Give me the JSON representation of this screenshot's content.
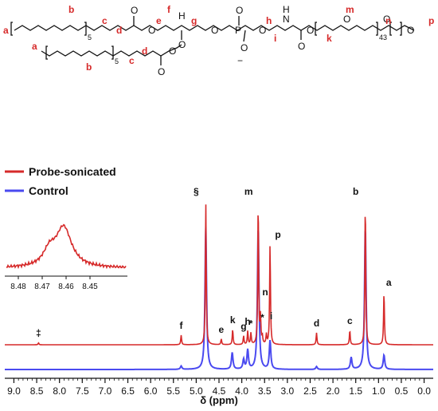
{
  "structure": {
    "atom_labels": [
      "a",
      "b",
      "c",
      "d",
      "e",
      "f",
      "g",
      "h",
      "i",
      "k",
      "m",
      "n",
      "p",
      "a",
      "b",
      "c",
      "d"
    ],
    "atoms": [
      "O",
      "O",
      "O",
      "P",
      "O",
      "O",
      "O",
      "N",
      "H",
      "O",
      "O",
      "O",
      "O",
      "O",
      "O",
      "O",
      "O",
      "H"
    ],
    "repeat_subscripts": [
      "5",
      "43",
      "5"
    ],
    "charge": "−"
  },
  "chart_data": {
    "type": "line",
    "xlabel": "δ (ppm)",
    "xlim": [
      9.2,
      -0.2
    ],
    "x_ticks": [
      "9.0",
      "8.5",
      "8.0",
      "7.5",
      "7.0",
      "6.5",
      "6.0",
      "5.5",
      "5.0",
      "4.5",
      "4.0",
      "3.5",
      "3.0",
      "2.5",
      "2.0",
      "1.5",
      "1.0",
      "0.5",
      "0.0"
    ],
    "series": [
      {
        "name": "Probe-sonicated",
        "color": "#d62a2a",
        "peaks": [
          {
            "label": "‡",
            "x": 8.46,
            "height": 0.04
          },
          {
            "label": "f",
            "x": 5.33,
            "height": 0.2
          },
          {
            "label": "§",
            "x": 4.79,
            "height": 3.0
          },
          {
            "label": "e",
            "x": 4.45,
            "height": 0.12
          },
          {
            "label": "k",
            "x": 4.2,
            "height": 0.32
          },
          {
            "label": "g",
            "x": 3.96,
            "height": 0.18
          },
          {
            "label": "h",
            "x": 3.87,
            "height": 0.28
          },
          {
            "label": "*",
            "x": 3.8,
            "height": 0.24
          },
          {
            "label": "m",
            "x": 3.64,
            "height": 3.0
          },
          {
            "label": "n",
            "x": 3.59,
            "height": 0.55
          },
          {
            "label": "*",
            "x": 3.55,
            "height": 0.15
          },
          {
            "label": "i",
            "x": 3.46,
            "height": 0.2
          },
          {
            "label": "p",
            "x": 3.38,
            "height": 2.1
          },
          {
            "label": "d",
            "x": 2.36,
            "height": 0.25
          },
          {
            "label": "c",
            "x": 1.63,
            "height": 0.3
          },
          {
            "label": "b",
            "x": 1.29,
            "height": 3.0
          },
          {
            "label": "a",
            "x": 0.88,
            "height": 1.1
          }
        ]
      },
      {
        "name": "Control",
        "color": "#4a4af0",
        "peaks": [
          {
            "x": 5.33,
            "height": 0.07
          },
          {
            "x": 4.79,
            "height": 3.0
          },
          {
            "x": 4.21,
            "height": 0.35
          },
          {
            "x": 3.96,
            "height": 0.2
          },
          {
            "x": 3.87,
            "height": 0.4
          },
          {
            "x": 3.64,
            "height": 3.0
          },
          {
            "x": 3.38,
            "height": 0.6
          },
          {
            "x": 2.36,
            "height": 0.06
          },
          {
            "x": 1.6,
            "height": 0.25
          },
          {
            "x": 1.29,
            "height": 3.0
          },
          {
            "x": 0.88,
            "height": 0.3
          }
        ]
      }
    ],
    "legend": [
      "Probe-sonicated",
      "Control"
    ],
    "legend_position": "left",
    "inset": {
      "xlim": [
        8.485,
        8.435
      ],
      "x_ticks": [
        "8.48",
        "8.47",
        "8.46",
        "8.45"
      ],
      "peak_x": 8.461
    }
  }
}
